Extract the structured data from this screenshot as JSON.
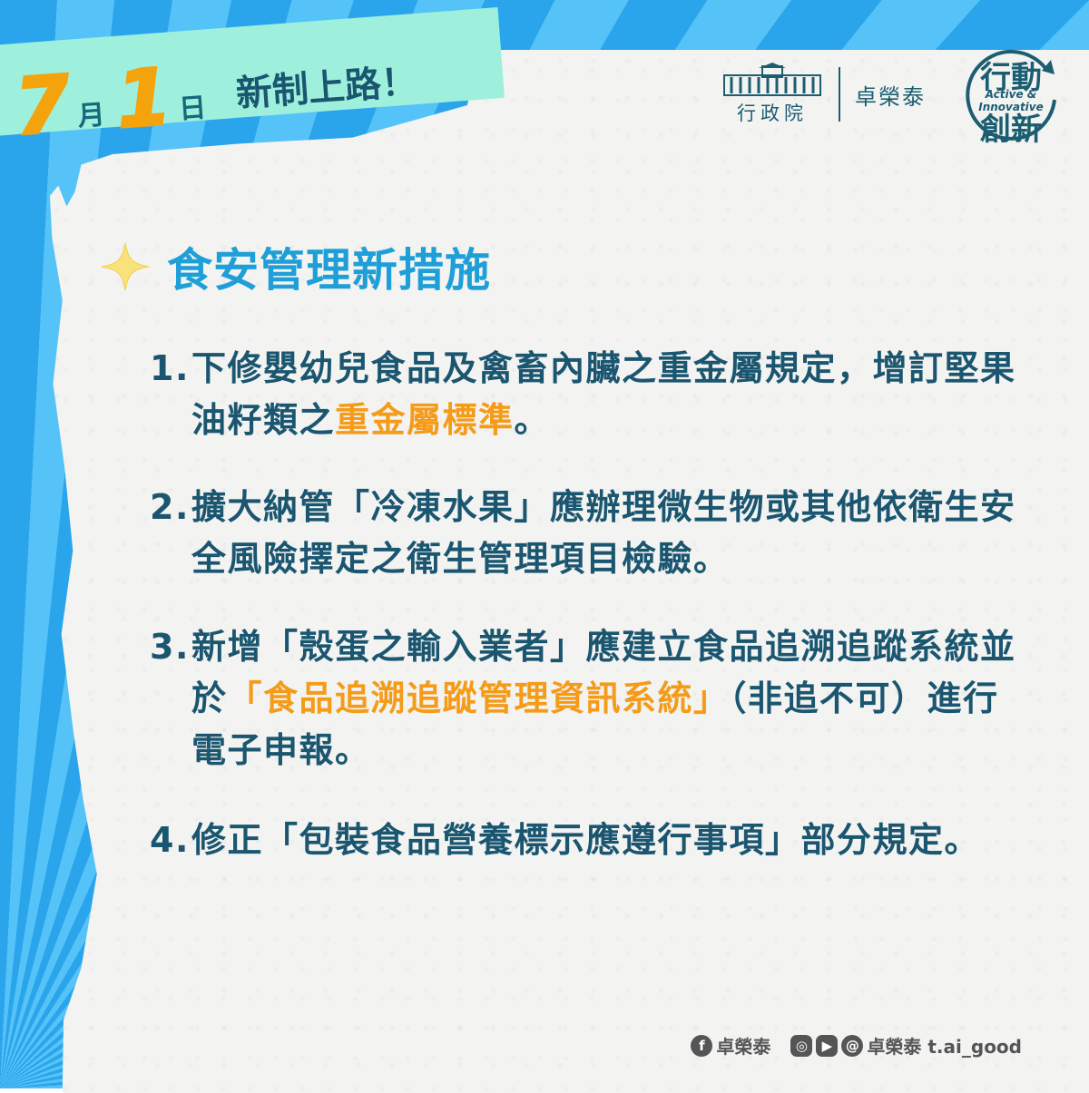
{
  "banner": {
    "month_num": "7",
    "month_unit": "月",
    "day_num": "1",
    "day_unit": "日",
    "slogan": "新制上路！"
  },
  "header": {
    "gov_name": "行政院",
    "premier": "卓榮泰",
    "seal": {
      "line1": "行動",
      "line2": "Active & Innovative",
      "line3": "創新"
    }
  },
  "section": {
    "title": "食安管理新措施",
    "icon": "sparkle-icon"
  },
  "items": [
    {
      "num": "1.",
      "lines": [
        "下修嬰幼兒食品及禽畜內臟之重金屬規定，增訂堅果油籽類之",
        "重金屬標準",
        "。"
      ]
    },
    {
      "num": "2.",
      "text": "擴大納管「冷凍水果」應辦理微生物或其他依衛生安全風險擇定之衛生管理項目檢驗。"
    },
    {
      "num": "3.",
      "lines": [
        "新增「殼蛋之輸入業者」應建立食品追溯追蹤系統並於",
        "「食品追溯追蹤管理資訊系統」",
        "（非追不可）進行電子申報。"
      ]
    },
    {
      "num": "4.",
      "text": "修正「包裝食品營養標示應遵行事項」部分規定。"
    }
  ],
  "footer": {
    "facebook_name": "卓榮泰",
    "social_name": "卓榮泰 t.ai_good"
  },
  "colors": {
    "accent_blue": "#1e9fd8",
    "highlight_orange": "#f59b18",
    "text_dark": "#1b5670",
    "date_orange": "#f5a30c",
    "banner_mint": "#9ef0dc"
  }
}
